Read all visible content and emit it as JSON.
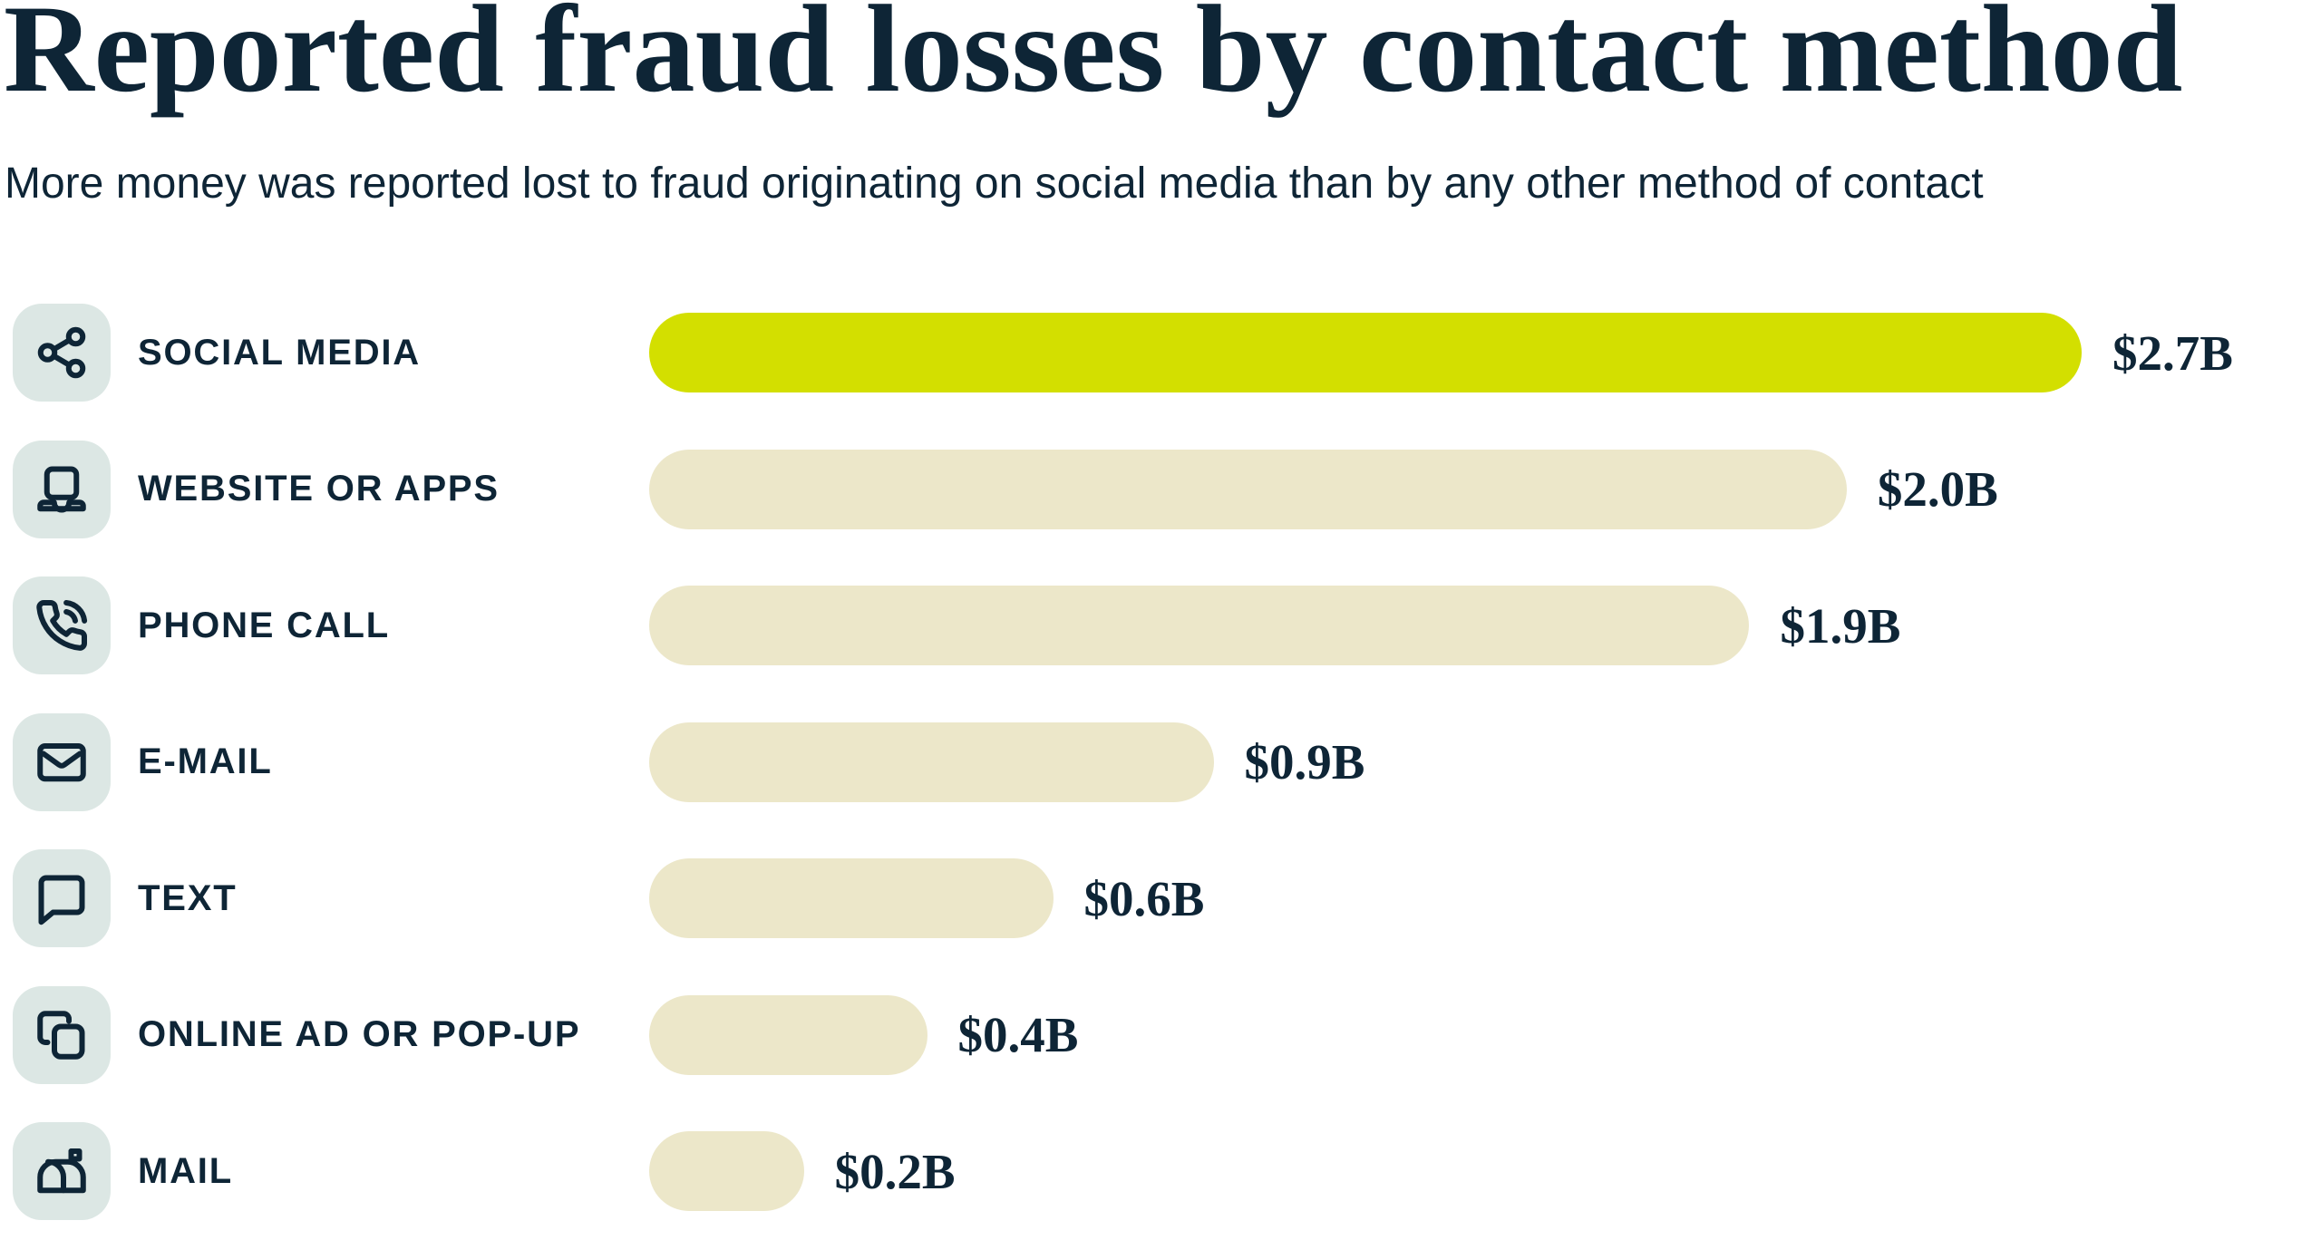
{
  "header": {
    "title": "Reported fraud losses by contact method",
    "subtitle": "More money was reported lost to fraud originating on social media than by any other method of contact"
  },
  "colors": {
    "text": "#0E2536",
    "highlight_bar": "#D3DF00",
    "default_bar": "#ECE7C9",
    "icon_tile_background": "#DCE7E4",
    "page_background": "#FFFFFF"
  },
  "chart_data": {
    "type": "bar",
    "orientation": "horizontal",
    "title": "Reported fraud losses by contact method",
    "subtitle": "More money was reported lost to fraud originating on social media than by any other method of contact",
    "unit": "USD billions",
    "categories": [
      "Social media",
      "Website or apps",
      "Phone call",
      "E-mail",
      "Text",
      "Online ad or pop-up",
      "Mail"
    ],
    "values": [
      2.7,
      2.0,
      1.9,
      0.9,
      0.6,
      0.4,
      0.2
    ],
    "value_labels": [
      "$2.7B",
      "$2.0B",
      "$1.9B",
      "$0.9B",
      "$0.6B",
      "$0.4B",
      "$0.2B"
    ],
    "highlighted_category": "Social media",
    "legend": false,
    "grid": false,
    "axes": "none; values labeled at bar ends"
  },
  "rows": [
    {
      "slug": "social-media",
      "label": "SOCIAL MEDIA",
      "icon": "share-nodes-icon",
      "value": 2.7,
      "value_label": "$2.7B",
      "bar_width_pct": 100,
      "highlight": true
    },
    {
      "slug": "website-or-apps",
      "label": "WEBSITE OR APPS",
      "icon": "laptop-icon",
      "value": 2.0,
      "value_label": "$2.0B",
      "bar_width_pct": 83.6,
      "highlight": false
    },
    {
      "slug": "phone-call",
      "label": "PHONE CALL",
      "icon": "phone-call-icon",
      "value": 1.9,
      "value_label": "$1.9B",
      "bar_width_pct": 76.8,
      "highlight": false
    },
    {
      "slug": "e-mail",
      "label": "E-MAIL",
      "icon": "envelope-icon",
      "value": 0.9,
      "value_label": "$0.9B",
      "bar_width_pct": 39.4,
      "highlight": false
    },
    {
      "slug": "text",
      "label": "TEXT",
      "icon": "speech-bubble-icon",
      "value": 0.6,
      "value_label": "$0.6B",
      "bar_width_pct": 28.2,
      "highlight": false
    },
    {
      "slug": "online-ad-or-pop-up",
      "label": "ONLINE AD OR POP-UP",
      "icon": "copy-icon",
      "value": 0.4,
      "value_label": "$0.4B",
      "bar_width_pct": 19.4,
      "highlight": false
    },
    {
      "slug": "mail",
      "label": "MAIL",
      "icon": "mailbox-icon",
      "value": 0.2,
      "value_label": "$0.2B",
      "bar_width_pct": 10.8,
      "highlight": false
    }
  ]
}
